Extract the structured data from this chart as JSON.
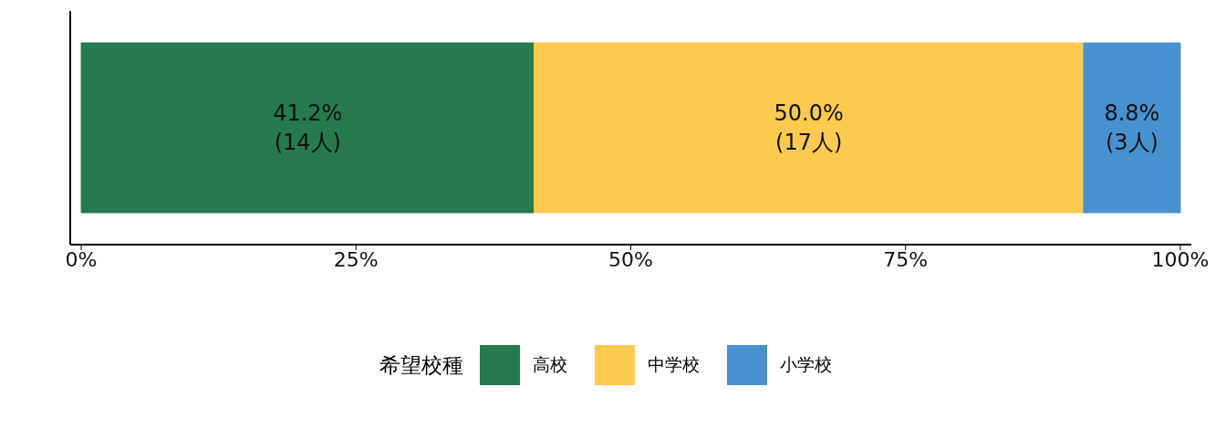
{
  "chart_data": {
    "type": "bar",
    "orientation": "horizontal",
    "stacked": true,
    "categories": [
      null
    ],
    "series": [
      {
        "name": "高校",
        "color": "#27794e",
        "values": [
          41.2
        ],
        "value_labels": [
          "41.2%\n(14人)"
        ]
      },
      {
        "name": "中学校",
        "color": "#fdca50",
        "values": [
          50.0
        ],
        "value_labels": [
          "50.0%\n(17人)"
        ]
      },
      {
        "name": "小学校",
        "color": "#4891d0",
        "values": [
          8.8
        ],
        "value_labels": [
          "8.8%\n(3人)"
        ]
      }
    ],
    "xlim": [
      -1,
      101
    ],
    "xticks": [
      {
        "value": 0,
        "label": "0%"
      },
      {
        "value": 25,
        "label": "25%"
      },
      {
        "value": 50,
        "label": "50%"
      },
      {
        "value": 75,
        "label": "75%"
      },
      {
        "value": 100,
        "label": "100%"
      }
    ],
    "legend": "bottom",
    "legend_title": "希望校種",
    "tick_labels": "x"
  }
}
